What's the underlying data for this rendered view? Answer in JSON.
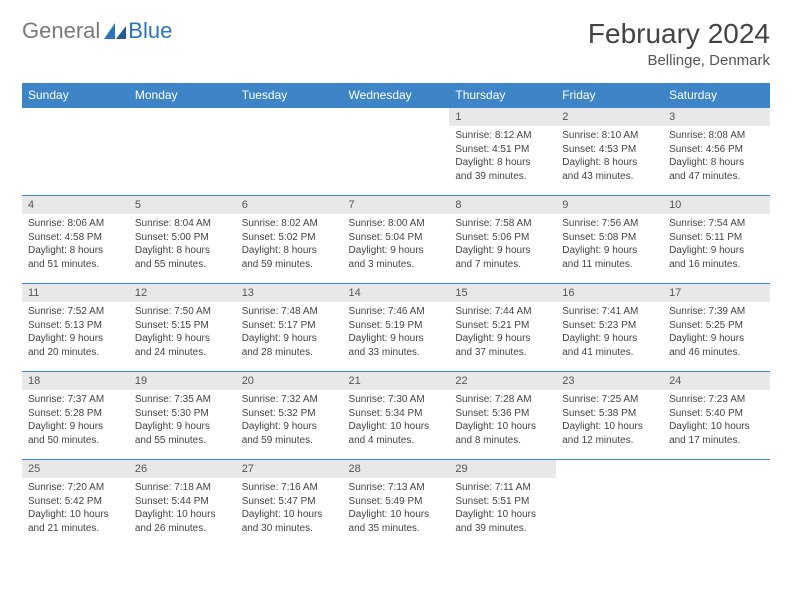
{
  "brand": {
    "part1": "General",
    "part2": "Blue"
  },
  "title": "February 2024",
  "location": "Bellinge, Denmark",
  "colors": {
    "header_bg": "#3d85c6",
    "header_text": "#ffffff",
    "daynum_bg": "#e8e8e8",
    "border": "#3d85c6",
    "logo_gray": "#7a7a7a",
    "logo_blue": "#2b74b8"
  },
  "weekdays": [
    "Sunday",
    "Monday",
    "Tuesday",
    "Wednesday",
    "Thursday",
    "Friday",
    "Saturday"
  ],
  "weeks": [
    [
      null,
      null,
      null,
      null,
      {
        "n": "1",
        "sr": "Sunrise: 8:12 AM",
        "ss": "Sunset: 4:51 PM",
        "d1": "Daylight: 8 hours",
        "d2": "and 39 minutes."
      },
      {
        "n": "2",
        "sr": "Sunrise: 8:10 AM",
        "ss": "Sunset: 4:53 PM",
        "d1": "Daylight: 8 hours",
        "d2": "and 43 minutes."
      },
      {
        "n": "3",
        "sr": "Sunrise: 8:08 AM",
        "ss": "Sunset: 4:56 PM",
        "d1": "Daylight: 8 hours",
        "d2": "and 47 minutes."
      }
    ],
    [
      {
        "n": "4",
        "sr": "Sunrise: 8:06 AM",
        "ss": "Sunset: 4:58 PM",
        "d1": "Daylight: 8 hours",
        "d2": "and 51 minutes."
      },
      {
        "n": "5",
        "sr": "Sunrise: 8:04 AM",
        "ss": "Sunset: 5:00 PM",
        "d1": "Daylight: 8 hours",
        "d2": "and 55 minutes."
      },
      {
        "n": "6",
        "sr": "Sunrise: 8:02 AM",
        "ss": "Sunset: 5:02 PM",
        "d1": "Daylight: 8 hours",
        "d2": "and 59 minutes."
      },
      {
        "n": "7",
        "sr": "Sunrise: 8:00 AM",
        "ss": "Sunset: 5:04 PM",
        "d1": "Daylight: 9 hours",
        "d2": "and 3 minutes."
      },
      {
        "n": "8",
        "sr": "Sunrise: 7:58 AM",
        "ss": "Sunset: 5:06 PM",
        "d1": "Daylight: 9 hours",
        "d2": "and 7 minutes."
      },
      {
        "n": "9",
        "sr": "Sunrise: 7:56 AM",
        "ss": "Sunset: 5:08 PM",
        "d1": "Daylight: 9 hours",
        "d2": "and 11 minutes."
      },
      {
        "n": "10",
        "sr": "Sunrise: 7:54 AM",
        "ss": "Sunset: 5:11 PM",
        "d1": "Daylight: 9 hours",
        "d2": "and 16 minutes."
      }
    ],
    [
      {
        "n": "11",
        "sr": "Sunrise: 7:52 AM",
        "ss": "Sunset: 5:13 PM",
        "d1": "Daylight: 9 hours",
        "d2": "and 20 minutes."
      },
      {
        "n": "12",
        "sr": "Sunrise: 7:50 AM",
        "ss": "Sunset: 5:15 PM",
        "d1": "Daylight: 9 hours",
        "d2": "and 24 minutes."
      },
      {
        "n": "13",
        "sr": "Sunrise: 7:48 AM",
        "ss": "Sunset: 5:17 PM",
        "d1": "Daylight: 9 hours",
        "d2": "and 28 minutes."
      },
      {
        "n": "14",
        "sr": "Sunrise: 7:46 AM",
        "ss": "Sunset: 5:19 PM",
        "d1": "Daylight: 9 hours",
        "d2": "and 33 minutes."
      },
      {
        "n": "15",
        "sr": "Sunrise: 7:44 AM",
        "ss": "Sunset: 5:21 PM",
        "d1": "Daylight: 9 hours",
        "d2": "and 37 minutes."
      },
      {
        "n": "16",
        "sr": "Sunrise: 7:41 AM",
        "ss": "Sunset: 5:23 PM",
        "d1": "Daylight: 9 hours",
        "d2": "and 41 minutes."
      },
      {
        "n": "17",
        "sr": "Sunrise: 7:39 AM",
        "ss": "Sunset: 5:25 PM",
        "d1": "Daylight: 9 hours",
        "d2": "and 46 minutes."
      }
    ],
    [
      {
        "n": "18",
        "sr": "Sunrise: 7:37 AM",
        "ss": "Sunset: 5:28 PM",
        "d1": "Daylight: 9 hours",
        "d2": "and 50 minutes."
      },
      {
        "n": "19",
        "sr": "Sunrise: 7:35 AM",
        "ss": "Sunset: 5:30 PM",
        "d1": "Daylight: 9 hours",
        "d2": "and 55 minutes."
      },
      {
        "n": "20",
        "sr": "Sunrise: 7:32 AM",
        "ss": "Sunset: 5:32 PM",
        "d1": "Daylight: 9 hours",
        "d2": "and 59 minutes."
      },
      {
        "n": "21",
        "sr": "Sunrise: 7:30 AM",
        "ss": "Sunset: 5:34 PM",
        "d1": "Daylight: 10 hours",
        "d2": "and 4 minutes."
      },
      {
        "n": "22",
        "sr": "Sunrise: 7:28 AM",
        "ss": "Sunset: 5:36 PM",
        "d1": "Daylight: 10 hours",
        "d2": "and 8 minutes."
      },
      {
        "n": "23",
        "sr": "Sunrise: 7:25 AM",
        "ss": "Sunset: 5:38 PM",
        "d1": "Daylight: 10 hours",
        "d2": "and 12 minutes."
      },
      {
        "n": "24",
        "sr": "Sunrise: 7:23 AM",
        "ss": "Sunset: 5:40 PM",
        "d1": "Daylight: 10 hours",
        "d2": "and 17 minutes."
      }
    ],
    [
      {
        "n": "25",
        "sr": "Sunrise: 7:20 AM",
        "ss": "Sunset: 5:42 PM",
        "d1": "Daylight: 10 hours",
        "d2": "and 21 minutes."
      },
      {
        "n": "26",
        "sr": "Sunrise: 7:18 AM",
        "ss": "Sunset: 5:44 PM",
        "d1": "Daylight: 10 hours",
        "d2": "and 26 minutes."
      },
      {
        "n": "27",
        "sr": "Sunrise: 7:16 AM",
        "ss": "Sunset: 5:47 PM",
        "d1": "Daylight: 10 hours",
        "d2": "and 30 minutes."
      },
      {
        "n": "28",
        "sr": "Sunrise: 7:13 AM",
        "ss": "Sunset: 5:49 PM",
        "d1": "Daylight: 10 hours",
        "d2": "and 35 minutes."
      },
      {
        "n": "29",
        "sr": "Sunrise: 7:11 AM",
        "ss": "Sunset: 5:51 PM",
        "d1": "Daylight: 10 hours",
        "d2": "and 39 minutes."
      },
      null,
      null
    ]
  ]
}
